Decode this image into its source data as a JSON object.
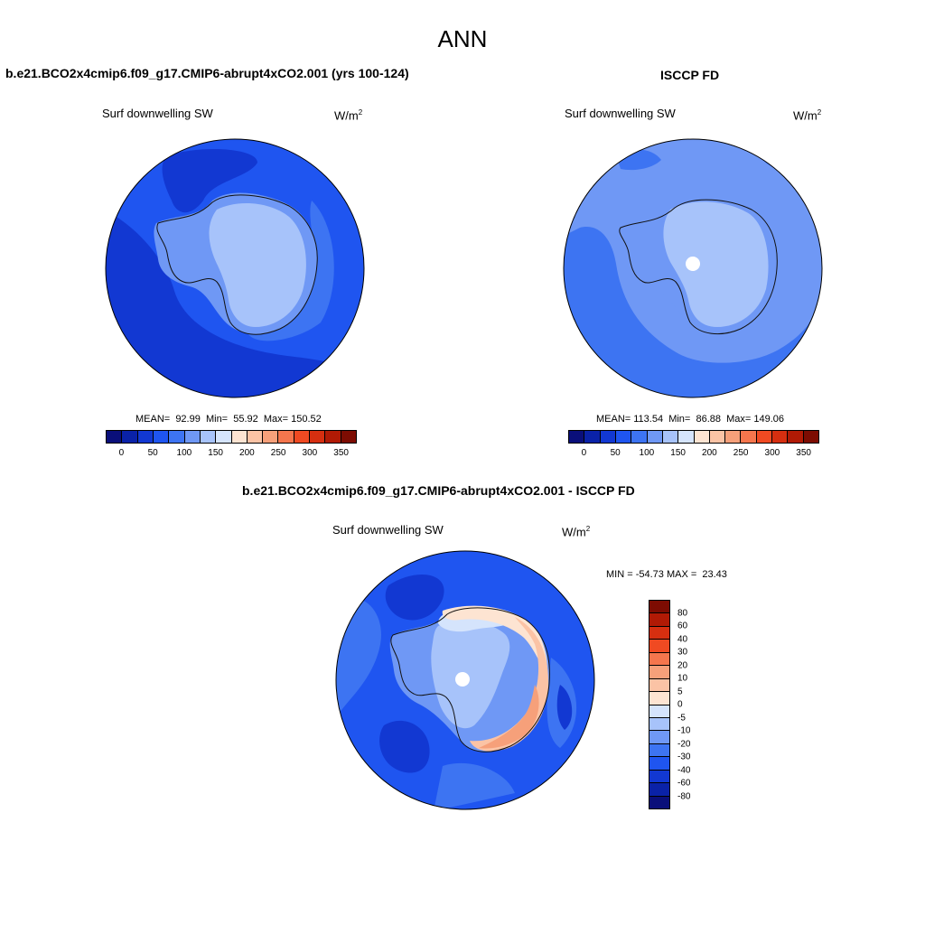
{
  "figure_title": "ANN",
  "panel1": {
    "title": "b.e21.BCO2x4cmip6.f09_g17.CMIP6-abrupt4xCO2.001 (yrs 100-124)",
    "variable": "Surf downwelling SW",
    "units_base": "W/m",
    "units_exp": "2",
    "stats": "MEAN=  92.99  Min=  55.92  Max= 150.52",
    "mean": 92.99,
    "min": 55.92,
    "max": 150.52
  },
  "panel2": {
    "title": "ISCCP FD",
    "variable": "Surf downwelling SW",
    "units_base": "W/m",
    "units_exp": "2",
    "stats": "MEAN= 113.54  Min=  86.88  Max= 149.06",
    "mean": 113.54,
    "min": 86.88,
    "max": 149.06
  },
  "panel3": {
    "title": "b.e21.BCO2x4cmip6.f09_g17.CMIP6-abrupt4xCO2.001 - ISCCP FD",
    "variable": "Surf downwelling SW",
    "units_base": "W/m",
    "units_exp": "2",
    "stats": "MIN = -54.73 MAX =  23.43",
    "min": -54.73,
    "max": 23.43
  },
  "colorbar_abs": {
    "colors": [
      "#0a0f7a",
      "#0a22a8",
      "#1238d2",
      "#1f55f0",
      "#3d74f2",
      "#6f98f5",
      "#a7c3fa",
      "#d5e4fc",
      "#fde4d2",
      "#fbc3a5",
      "#f6a07a",
      "#f5764d",
      "#f04a22",
      "#d62f10",
      "#b11a05",
      "#7d0c02"
    ],
    "tick_labels": [
      "0",
      "50",
      "100",
      "150",
      "200",
      "250",
      "300",
      "350"
    ]
  },
  "colorbar_diff": {
    "colors": [
      "#7d0c02",
      "#b11a05",
      "#d62f10",
      "#f04a22",
      "#f5764d",
      "#f6a07a",
      "#fbc3a5",
      "#fde4d2",
      "#d5e4fc",
      "#a7c3fa",
      "#6f98f5",
      "#3d74f2",
      "#1f55f0",
      "#1238d2",
      "#0a22a8",
      "#0a0f7a"
    ],
    "tick_labels": [
      "80",
      "60",
      "40",
      "30",
      "20",
      "10",
      "5",
      "0",
      "-5",
      "-10",
      "-20",
      "-30",
      "-40",
      "-60",
      "-80"
    ]
  },
  "map_colors": {
    "ocean_dark": "#1238d2",
    "ocean_mid": "#1f55f0",
    "ocean_light": "#3d74f2",
    "ice_medium": "#6f98f5",
    "ice_light": "#a7c3fa",
    "ice_pale": "#d5e4fc",
    "warm_pale": "#fde4d2",
    "warm_light": "#fbc3a5",
    "warm_mid": "#f6a07a",
    "coast": "#111111",
    "pole_hole": "#ffffff"
  }
}
